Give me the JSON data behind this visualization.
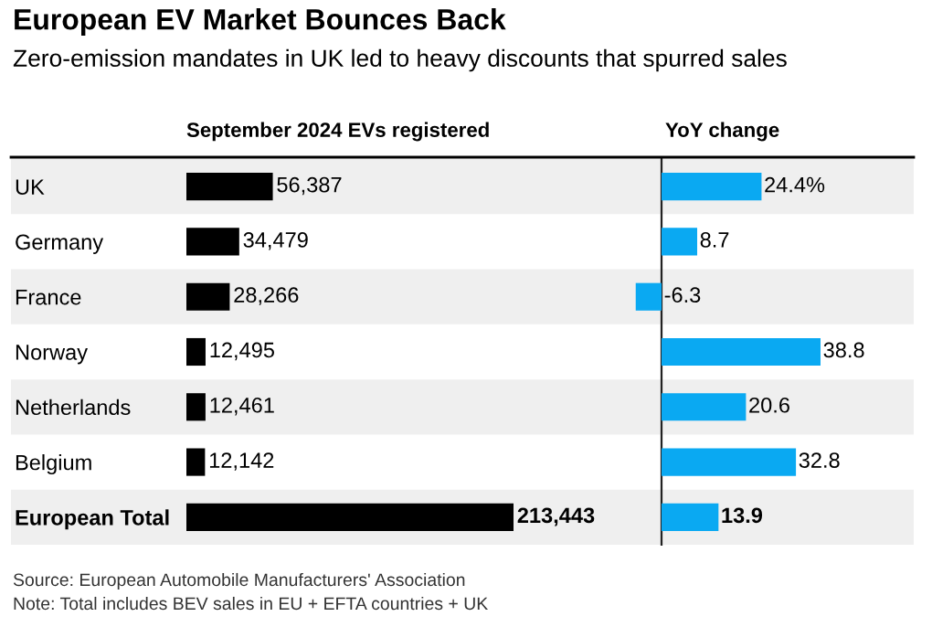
{
  "chart_data": [
    {
      "type": "other",
      "title": "European EV Market Bounces Back",
      "subtitle": "Zero-emission mandates in UK led to heavy discounts that spurred sales",
      "annotations": [
        "Source: European Automobile Manufacturers' Association",
        "Note: Total includes BEV sales in EU + EFTA countries + UK"
      ]
    },
    {
      "type": "bar",
      "orientation": "horizontal",
      "title": "September 2024 EVs registered",
      "categories": [
        "UK",
        "Germany",
        "France",
        "Norway",
        "Netherlands",
        "Belgium",
        "European Total"
      ],
      "values": [
        56387,
        34479,
        28266,
        12495,
        12461,
        12142,
        213443
      ],
      "value_labels": [
        "56,387",
        "34,479",
        "28,266",
        "12,495",
        "12,461",
        "12,142",
        "213,443"
      ],
      "color": "#000000",
      "tick_labels": "y",
      "grid": false,
      "legend": false
    },
    {
      "type": "bar",
      "orientation": "horizontal",
      "title": "YoY change",
      "values": [
        24.4,
        8.7,
        -6.3,
        38.8,
        20.6,
        32.8,
        13.9
      ],
      "value_labels": [
        "24.4%",
        "8.7",
        "-6.3",
        "38.8",
        "20.6",
        "32.8",
        "13.9"
      ],
      "color": "#0aa9f2",
      "tick_labels": false,
      "grid": false,
      "legend": false
    }
  ]
}
